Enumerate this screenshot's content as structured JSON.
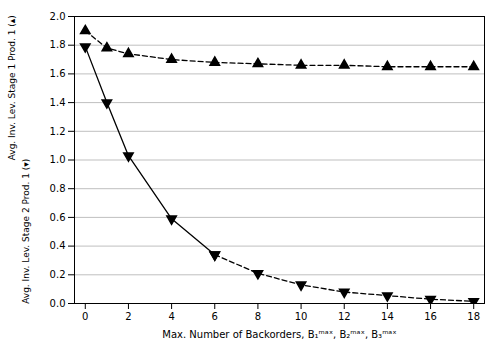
{
  "chart_data": {
    "type": "line",
    "xlabel": "Max. Number of Backorders, B₁ᵐᵃˣ, B₂ᵐᵃˣ, B₃ᵐᵃˣ",
    "ylabel": [
      "Avg. Inv. Lev. Stage 1 Prod. 1 (▴)",
      "Avg. Inv. Lev. Stage 2 Prod. 1 (▾)"
    ],
    "x": [
      0,
      1,
      2,
      4,
      6,
      8,
      10,
      12,
      14,
      16,
      18
    ],
    "series": [
      {
        "color": "#000000",
        "marker": "triangle-up",
        "line_style": "dashed",
        "values": [
          1.9,
          1.78,
          1.74,
          1.7,
          1.68,
          1.67,
          1.66,
          1.66,
          1.65,
          1.65,
          1.65
        ]
      },
      {
        "color": "#000000",
        "marker": "triangle-down",
        "line_style": "solid",
        "values": [
          1.79,
          1.4,
          1.03,
          0.59,
          0.34,
          null,
          null,
          null,
          null,
          null,
          null
        ]
      },
      {
        "color": "#000000",
        "marker": "triangle-down",
        "line_style": "dashed",
        "values": [
          null,
          null,
          null,
          null,
          0.34,
          0.21,
          0.13,
          0.08,
          0.055,
          0.03,
          0.015
        ]
      }
    ],
    "xlim": [
      -0.5,
      18.5
    ],
    "xticks": [
      0,
      2,
      4,
      6,
      8,
      10,
      12,
      14,
      16,
      18
    ],
    "ylim": [
      0.0,
      2.0
    ],
    "yticks": [
      {
        "value": 0.0,
        "label": "0.0"
      },
      0.2,
      0.4,
      0.6,
      0.8,
      {
        "value": 1.0,
        "label": "1.0"
      },
      1.2,
      1.4,
      1.6,
      1.8,
      {
        "value": 2.0,
        "label": "2.0"
      }
    ],
    "grid": "y"
  }
}
